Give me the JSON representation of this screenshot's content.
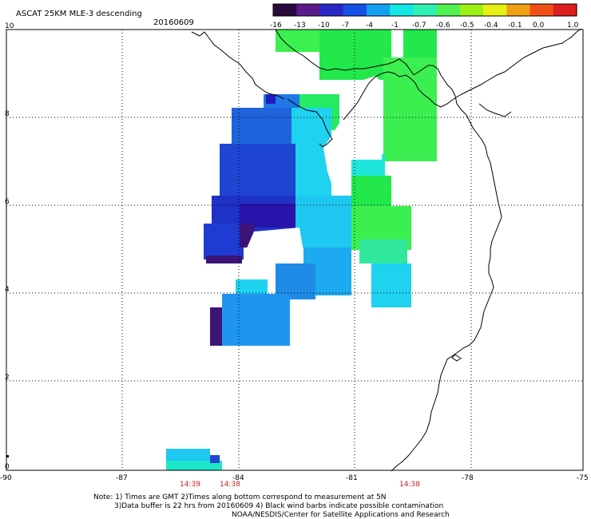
{
  "header": {
    "title": "ASCAT 25KM MLE-3 descending",
    "date": "20160609"
  },
  "colorbar": {
    "labels": [
      "-16",
      "-13",
      "-10",
      "-7",
      "-4",
      "-1",
      "-0.7",
      "-0.6",
      "-0.5",
      "-0.4",
      "-0.1",
      "0.0",
      "1.0"
    ],
    "colors": [
      "#2a0a3c",
      "#5a1a8c",
      "#2828c8",
      "#1450e6",
      "#14a0f0",
      "#14e6e6",
      "#30f0b4",
      "#50f050",
      "#9cf014",
      "#e6f014",
      "#f0a014",
      "#f05014",
      "#dc1e1e"
    ]
  },
  "axes": {
    "lat_labels": [
      "10",
      "8",
      "6",
      "4",
      "2",
      "0"
    ],
    "lon_labels": [
      "-90",
      "-87",
      "-84",
      "-81",
      "-78",
      "-75"
    ]
  },
  "pass_times": [
    "14:39",
    "14:38",
    "14:38"
  ],
  "notes": {
    "line1": "Note: 1) Times are GMT 2)Times along bottom correspond to measurement at 5N",
    "line2": "3)Data buffer is 22 hrs from 20160609 4) Black wind barbs indicate possible contamination",
    "line3": "NOAA/NESDIS/Center for Satellite Applications and Research"
  }
}
